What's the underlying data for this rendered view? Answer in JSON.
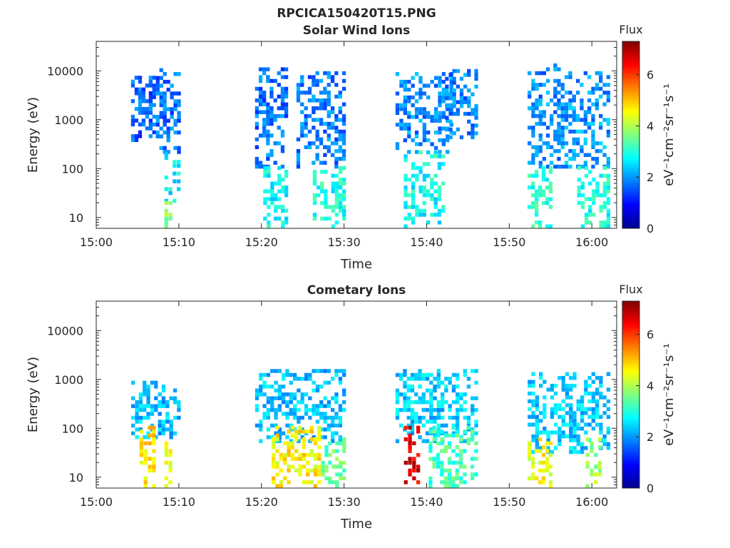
{
  "figure": {
    "title": "RPCICA150420T15.PNG"
  },
  "chart_data": [
    {
      "type": "heatmap",
      "title": "Solar Wind Ions",
      "xlabel": "Time",
      "ylabel": "Energy (eV)",
      "y_scale": "log",
      "xlim": [
        "15:00",
        "16:03"
      ],
      "ylim": [
        6,
        40000
      ],
      "x_ticks": [
        "15:00",
        "15:10",
        "15:20",
        "15:30",
        "15:40",
        "15:50",
        "16:00"
      ],
      "y_ticks": [
        {
          "value": 10,
          "label": "10"
        },
        {
          "value": 100,
          "label": "100"
        },
        {
          "value": 1000,
          "label": "1000"
        },
        {
          "value": 10000,
          "label": "10000"
        }
      ],
      "colorbar": {
        "title": "Flux",
        "label": "eV⁻¹cm⁻²sr⁻¹s⁻¹",
        "range": [
          0,
          7.3
        ],
        "ticks": [
          "0",
          "2",
          "4",
          "6"
        ],
        "colormap": "jet"
      },
      "clusters": [
        {
          "t_start": "15:04",
          "t_end": "15:07",
          "e_min": 350,
          "e_max": 7000,
          "flux": 1.6
        },
        {
          "t_start": "15:07",
          "t_end": "15:10",
          "e_min": 200,
          "e_max": 13000,
          "flux": 1.7
        },
        {
          "t_start": "15:08",
          "t_end": "15:10",
          "e_min": 20,
          "e_max": 200,
          "flux": 2.7
        },
        {
          "t_start": "15:08",
          "t_end": "15:09",
          "e_min": 6,
          "e_max": 20,
          "flux": 3.8
        },
        {
          "t_start": "15:19",
          "t_end": "15:23",
          "e_min": 100,
          "e_max": 10000,
          "flux": 1.7
        },
        {
          "t_start": "15:20",
          "t_end": "15:23",
          "e_min": 6,
          "e_max": 100,
          "flux": 2.8
        },
        {
          "t_start": "15:24",
          "t_end": "15:30",
          "e_min": 100,
          "e_max": 9000,
          "flux": 1.8
        },
        {
          "t_start": "15:26",
          "t_end": "15:30",
          "e_min": 6,
          "e_max": 100,
          "flux": 2.9
        },
        {
          "t_start": "15:36",
          "t_end": "15:43",
          "e_min": 200,
          "e_max": 9000,
          "flux": 1.9
        },
        {
          "t_start": "15:37",
          "t_end": "15:42",
          "e_min": 6,
          "e_max": 200,
          "flux": 2.8
        },
        {
          "t_start": "15:42",
          "t_end": "15:46",
          "e_min": 400,
          "e_max": 10000,
          "flux": 1.8
        },
        {
          "t_start": "15:52",
          "t_end": "15:56",
          "e_min": 100,
          "e_max": 12000,
          "flux": 1.9
        },
        {
          "t_start": "15:52",
          "t_end": "15:55",
          "e_min": 6,
          "e_max": 100,
          "flux": 3.0
        },
        {
          "t_start": "15:56",
          "t_end": "16:02",
          "e_min": 100,
          "e_max": 9000,
          "flux": 2.0
        },
        {
          "t_start": "15:58",
          "t_end": "16:02",
          "e_min": 6,
          "e_max": 100,
          "flux": 2.9
        }
      ]
    },
    {
      "type": "heatmap",
      "title": "Cometary Ions",
      "xlabel": "Time",
      "ylabel": "Energy (eV)",
      "y_scale": "log",
      "xlim": [
        "15:00",
        "16:03"
      ],
      "ylim": [
        6,
        40000
      ],
      "x_ticks": [
        "15:00",
        "15:10",
        "15:20",
        "15:30",
        "15:40",
        "15:50",
        "16:00"
      ],
      "y_ticks": [
        {
          "value": 10,
          "label": "10"
        },
        {
          "value": 100,
          "label": "100"
        },
        {
          "value": 1000,
          "label": "1000"
        },
        {
          "value": 10000,
          "label": "10000"
        }
      ],
      "colorbar": {
        "title": "Flux",
        "label": "eV⁻¹cm⁻²sr⁻¹s⁻¹",
        "range": [
          0,
          7.3
        ],
        "ticks": [
          "0",
          "2",
          "4",
          "6"
        ],
        "colormap": "jet"
      },
      "clusters": [
        {
          "t_start": "15:04",
          "t_end": "15:10",
          "e_min": 60,
          "e_max": 900,
          "flux": 2.3
        },
        {
          "t_start": "15:05",
          "t_end": "15:07",
          "e_min": 6,
          "e_max": 100,
          "flux": 4.8
        },
        {
          "t_start": "15:08",
          "t_end": "15:09",
          "e_min": 6,
          "e_max": 60,
          "flux": 4.5
        },
        {
          "t_start": "15:19",
          "t_end": "15:30",
          "e_min": 50,
          "e_max": 1500,
          "flux": 2.3
        },
        {
          "t_start": "15:21",
          "t_end": "15:27",
          "e_min": 6,
          "e_max": 100,
          "flux": 4.6
        },
        {
          "t_start": "15:27",
          "t_end": "15:30",
          "e_min": 6,
          "e_max": 60,
          "flux": 3.5
        },
        {
          "t_start": "15:36",
          "t_end": "15:46",
          "e_min": 50,
          "e_max": 1500,
          "flux": 2.4
        },
        {
          "t_start": "15:37",
          "t_end": "15:39",
          "e_min": 6,
          "e_max": 100,
          "flux": 6.6
        },
        {
          "t_start": "15:40",
          "t_end": "15:46",
          "e_min": 6,
          "e_max": 100,
          "flux": 3.2
        },
        {
          "t_start": "15:52",
          "t_end": "16:02",
          "e_min": 30,
          "e_max": 1200,
          "flux": 2.4
        },
        {
          "t_start": "15:52",
          "t_end": "15:55",
          "e_min": 6,
          "e_max": 60,
          "flux": 4.5
        },
        {
          "t_start": "15:59",
          "t_end": "16:01",
          "e_min": 6,
          "e_max": 60,
          "flux": 3.8
        }
      ]
    }
  ]
}
